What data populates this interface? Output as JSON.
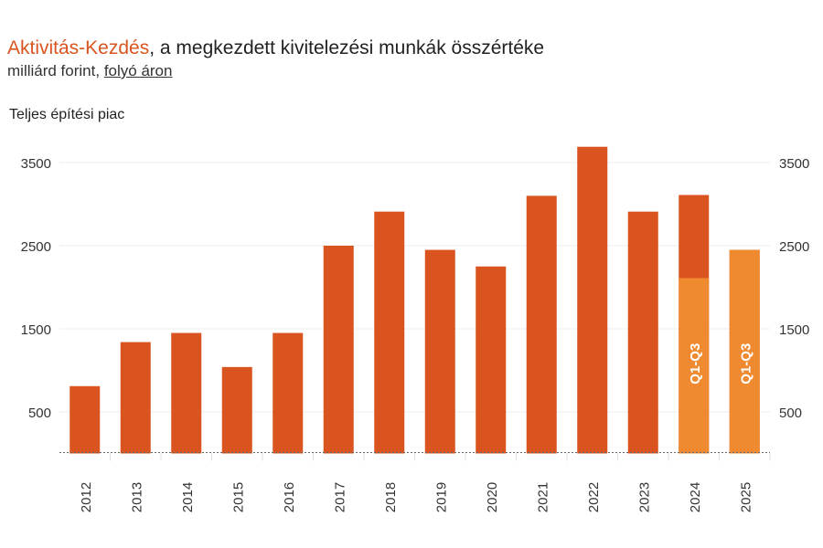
{
  "header": {
    "title_accent": "Aktivitás-Kezdés",
    "title_rest": ", a megkezdett kivitelezési munkák összértéke",
    "subtitle_plain": "milliárd forint, ",
    "subtitle_link": "folyó áron",
    "section_label": "Teljes építési piac"
  },
  "chart_data": {
    "type": "bar",
    "categories": [
      "2012",
      "2013",
      "2014",
      "2015",
      "2016",
      "2017",
      "2018",
      "2019",
      "2020",
      "2021",
      "2022",
      "2023",
      "2024",
      "2025"
    ],
    "series": [
      {
        "values": [
          810,
          1340,
          1450,
          1040,
          1450,
          2500,
          2910,
          2450,
          2250,
          3100,
          3690,
          2910,
          3110,
          2450
        ]
      }
    ],
    "partial_q1_q3": {
      "2024": 2110,
      "2025": 2450
    },
    "partial_label": "Q1-Q3",
    "yticks": [
      500,
      1500,
      2500,
      3500
    ],
    "ylim": [
      0,
      3700
    ],
    "grid": true,
    "colors": {
      "full_year": "#d9541e",
      "q1_q3": "#f08a30",
      "grid": "#ececec",
      "baseline": "#666666"
    }
  }
}
